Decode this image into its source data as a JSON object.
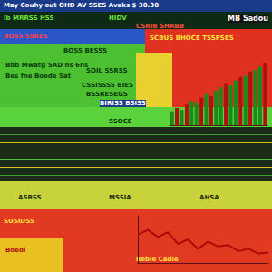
{
  "header": {
    "title": "May Couhy out OHD AV SSES Avaks $ 30.30",
    "right": "MB Sadou"
  },
  "labels": [
    "Ib MRRSS HSS",
    "HIDV",
    "CSRIB SHRBB",
    "BOSS SSRES",
    "SCBUS BHOCE TSSPSES",
    "BOSS BESSS",
    "Bbb Mwatg SAD ns 6ns",
    "Bes fne Boede Sat",
    "SOIL SSRSS",
    "CSSISSSS BIES",
    "BSSRESEGS",
    "BIRISS BSISS",
    "SSOCE",
    "ASBSS",
    "MSSIA",
    "AHSA",
    "SUSIDSS",
    "Boedi",
    "Bebie Cadie"
  ],
  "chart_data": [
    {
      "type": "bar",
      "categories": [
        null,
        null,
        null,
        null,
        null,
        null,
        null,
        null,
        null,
        null,
        null,
        null,
        null,
        null,
        null,
        null,
        null,
        null,
        null,
        null
      ],
      "values": [
        20,
        25,
        22,
        30,
        35,
        32,
        40,
        45,
        42,
        50,
        55,
        60,
        58,
        65,
        70,
        72,
        78,
        80,
        85,
        90
      ],
      "colors": [
        "#1a8a1a",
        "#b01010",
        "#1a8a1a",
        "#b01010",
        "#1a8a1a",
        "#1a8a1a",
        "#b01010",
        "#1a8a1a",
        "#b01010",
        "#1a8a1a",
        "#1a8a1a",
        "#b01010",
        "#1a8a1a",
        "#1a8a1a",
        "#b01010",
        "#1a8a1a",
        "#b01010",
        "#1a8a1a",
        "#1a8a1a",
        "#b01010"
      ],
      "ylim": [
        0,
        100
      ],
      "tick_labels": false
    },
    {
      "type": "line",
      "categories": [
        null,
        null,
        null,
        null,
        null,
        null,
        null,
        null,
        null,
        null,
        null,
        null,
        null,
        null
      ],
      "values": [
        60,
        70,
        55,
        65,
        40,
        50,
        30,
        45,
        35,
        38,
        25,
        30,
        20,
        22
      ],
      "color": "#b00808",
      "ylim": [
        0,
        100
      ],
      "tick_labels": false
    }
  ]
}
